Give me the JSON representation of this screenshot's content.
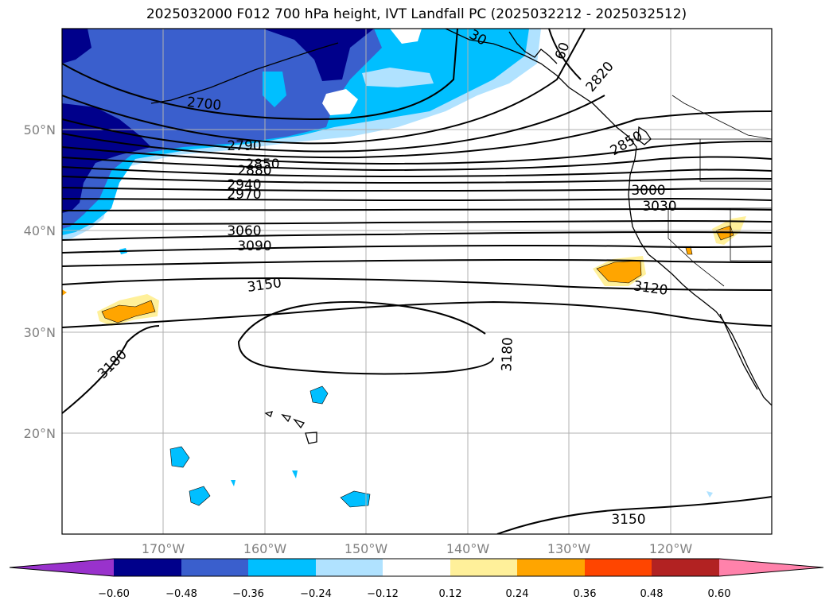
{
  "title": "2025032000 F012 700 hPa height, IVT Landfall PC (2025032212 - 2025032512)",
  "axes": {
    "lon_ticks": [
      "170°W",
      "160°W",
      "150°W",
      "140°W",
      "130°W",
      "120°W"
    ],
    "lat_ticks": [
      "50°N",
      "40°N",
      "30°N",
      "20°N"
    ],
    "grid": true
  },
  "colorbar": {
    "ticks": [
      "−0.60",
      "−0.48",
      "−0.36",
      "−0.24",
      "−0.12",
      "0.12",
      "0.24",
      "0.36",
      "0.48",
      "0.60"
    ],
    "colors": [
      "#9932cc",
      "#00008b",
      "#3a5fcd",
      "#00bfff",
      "#b0e2ff",
      "#ffffff",
      "#fff09a",
      "#ffa500",
      "#ff4500",
      "#b22222",
      "#ff82ab"
    ],
    "extend": "both"
  },
  "contour_labels": [
    "2700",
    "2790",
    "2850",
    "2880",
    "2940",
    "2970",
    "3000",
    "3030",
    "3060",
    "3090",
    "3150",
    "3120",
    "3180",
    "3180",
    "3150",
    "2820",
    "60",
    "30",
    "2850"
  ],
  "map_colors": {
    "land_outline": "#000000",
    "grid": "#b0b0b0"
  }
}
